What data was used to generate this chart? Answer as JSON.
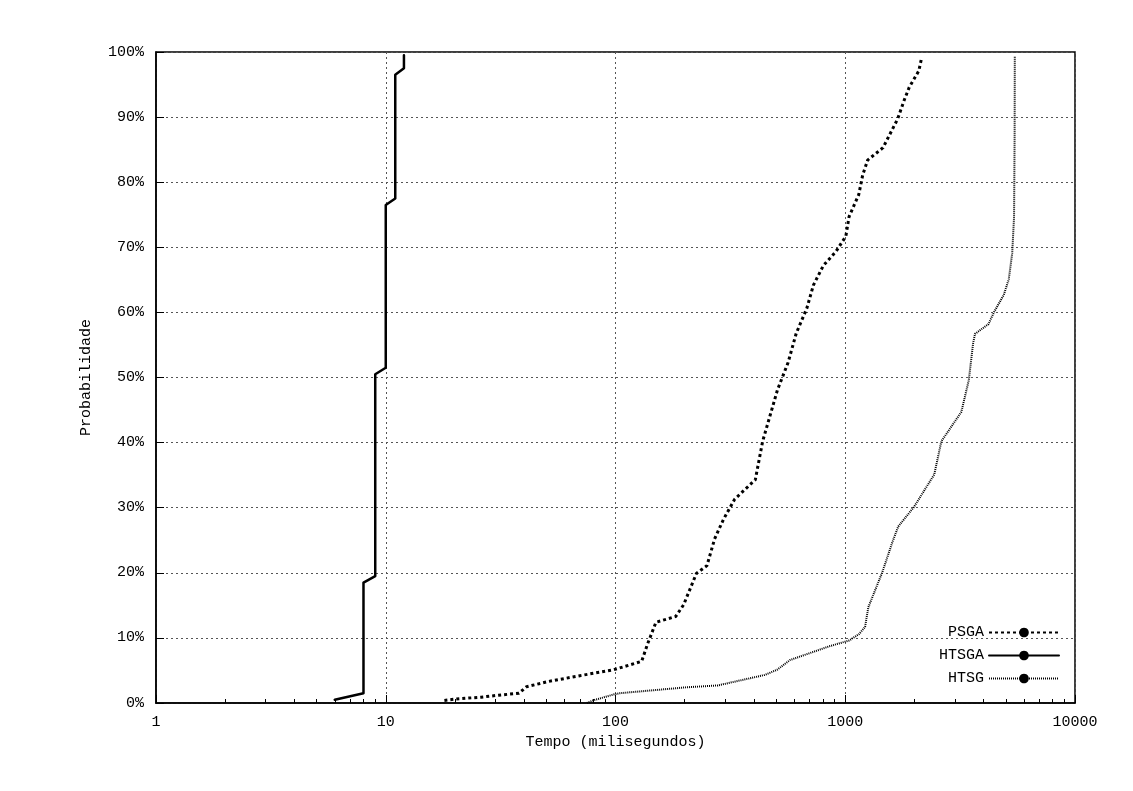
{
  "chart_data": {
    "type": "line",
    "xlabel": "Tempo (milisegundos)",
    "ylabel": "Probabilidade",
    "log": "x",
    "grid": true,
    "legend": "bottom right",
    "marker": "none",
    "xlim": [
      1,
      10000
    ],
    "xticks": [
      1,
      10,
      100,
      1000,
      10000
    ],
    "ylim": [
      0,
      100
    ],
    "yticks": [
      {
        "value": 0,
        "label": "0%"
      },
      {
        "value": 10,
        "label": "10%"
      },
      {
        "value": 20,
        "label": "20%"
      },
      {
        "value": 30,
        "label": "30%"
      },
      {
        "value": 40,
        "label": "40%"
      },
      {
        "value": 50,
        "label": "50%"
      },
      {
        "value": 60,
        "label": "60%"
      },
      {
        "value": 70,
        "label": "70%"
      },
      {
        "value": 80,
        "label": "80%"
      },
      {
        "value": 90,
        "label": "90%"
      },
      {
        "value": 100,
        "label": "100%"
      }
    ],
    "series": [
      {
        "name": "PSGA",
        "color": "#000000",
        "line_style": "dashed",
        "x": [
          18,
          20,
          26,
          31,
          38,
          41,
          51,
          70,
          98,
          130,
          138,
          150,
          183,
          198,
          225,
          250,
          270,
          295,
          330,
          406,
          437,
          507,
          564,
          612,
          680,
          727,
          803,
          913,
          1006,
          1039,
          1145,
          1191,
          1252,
          1460,
          1690,
          1810,
          1900,
          2090,
          2150
        ],
        "values": [
          0.4,
          0.6,
          0.9,
          1.2,
          1.5,
          2.5,
          3.3,
          4.2,
          5.1,
          6.4,
          9.1,
          12.4,
          13.3,
          15.1,
          19.9,
          21.1,
          25.2,
          28.2,
          31.3,
          34.3,
          40.2,
          48.1,
          52.3,
          56.8,
          60.6,
          64.2,
          67.2,
          69.4,
          71.7,
          74.7,
          78.1,
          81.1,
          83.4,
          85.3,
          89.7,
          92.7,
          94.6,
          97.1,
          99.1
        ]
      },
      {
        "name": "HTSGA",
        "color": "#000000",
        "line_style": "solid",
        "x": [
          6,
          8,
          8,
          9,
          9,
          10,
          10,
          11,
          11,
          12,
          12
        ],
        "values": [
          0.5,
          1.5,
          18.5,
          19.5,
          50.5,
          51.5,
          76.5,
          77.5,
          96.5,
          97.5,
          99.5
        ]
      },
      {
        "name": "HTSG",
        "color": "#000000",
        "line_style": "dotted",
        "x": [
          75,
          80,
          98,
          104,
          202,
          279,
          445,
          505,
          575,
          850,
          1040,
          1150,
          1220,
          1260,
          1450,
          1600,
          1700,
          1990,
          2440,
          2620,
          3200,
          3450,
          3600,
          3670,
          4200,
          4450,
          4900,
          5150,
          5330,
          5430,
          5460,
          5470
        ],
        "values": [
          0,
          0.4,
          1.3,
          1.5,
          2.4,
          2.7,
          4.3,
          5.1,
          6.6,
          8.7,
          9.6,
          10.6,
          11.7,
          14.7,
          20.1,
          24.6,
          27.1,
          30.1,
          35.1,
          40.2,
          44.7,
          49.6,
          55.2,
          56.7,
          58.2,
          60.1,
          62.7,
          65.1,
          69.1,
          74.7,
          87.1,
          99.4
        ]
      }
    ]
  }
}
